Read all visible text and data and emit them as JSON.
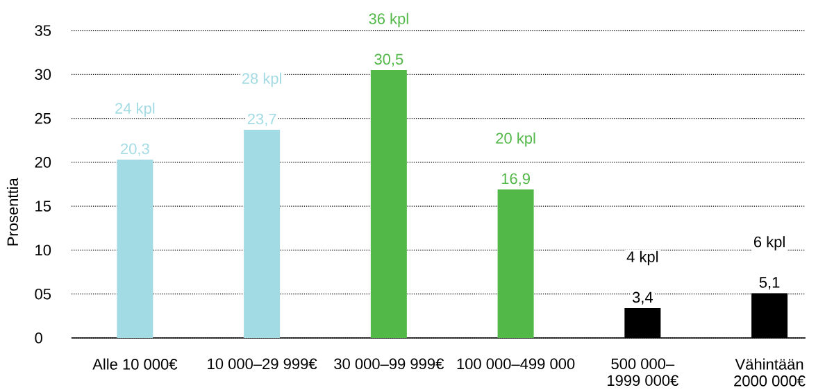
{
  "chart_data": {
    "type": "bar",
    "ylabel": "Prosenttia",
    "categories": [
      "Alle 10 000€",
      "10 000–29 999€",
      "30 000–99 999€",
      "100 000–499 000",
      "500 000–\n1999 000€",
      "Vähintään\n2000 000€"
    ],
    "values": [
      20.3,
      23.7,
      30.5,
      16.9,
      3.4,
      5.1
    ],
    "colors": [
      "#a2dbe3",
      "#a2dbe3",
      "#52b848",
      "#52b848",
      "#000000",
      "#000000"
    ],
    "value_labels": [
      "20,3",
      "23,7",
      "30,5",
      "16,9",
      "3,4",
      "5,1"
    ],
    "ylim": [
      0,
      35
    ],
    "yticks": [
      0,
      {
        "value": 5,
        "label": "05"
      },
      10,
      15,
      20,
      25,
      30,
      35
    ],
    "grid": "y",
    "annotations": [
      "24 kpl",
      "28 kpl",
      "36 kpl",
      "20 kpl",
      "4 kpl",
      "6 kpl"
    ]
  }
}
